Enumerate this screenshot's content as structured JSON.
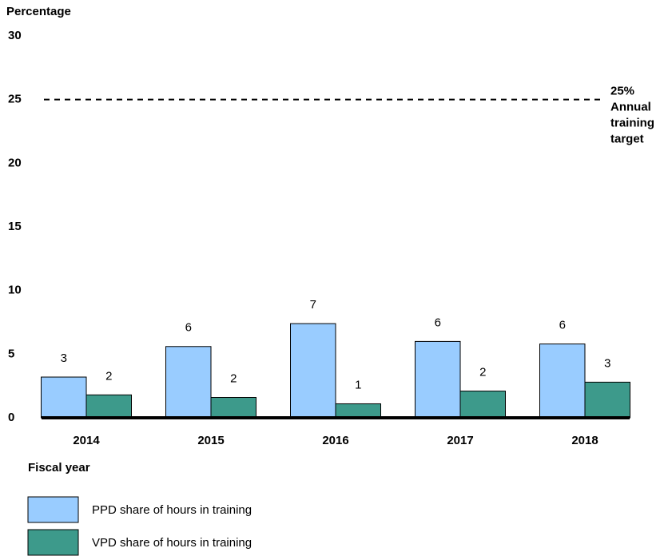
{
  "chart_data": {
    "type": "bar",
    "y_axis_label": "Percentage",
    "x_axis_label": "Fiscal year",
    "categories": [
      "2014",
      "2015",
      "2016",
      "2017",
      "2018"
    ],
    "series": [
      {
        "name": "PPD share of hours in training",
        "color": "#99ccff",
        "values": [
          3.2,
          5.6,
          7.4,
          6.0,
          5.8
        ],
        "value_labels": [
          "3",
          "6",
          "7",
          "6",
          "6"
        ]
      },
      {
        "name": "VPD share of hours in training",
        "color": "#3d9a8b",
        "values": [
          1.8,
          1.6,
          1.1,
          2.1,
          2.8
        ],
        "value_labels": [
          "2",
          "2",
          "1",
          "2",
          "3"
        ]
      }
    ],
    "ylim": [
      0,
      30
    ],
    "yticks": [
      0,
      5,
      10,
      15,
      20,
      25,
      30
    ],
    "target_line": {
      "value": 25,
      "label_lines": [
        "25%",
        "Annual",
        "training",
        "target"
      ]
    }
  }
}
